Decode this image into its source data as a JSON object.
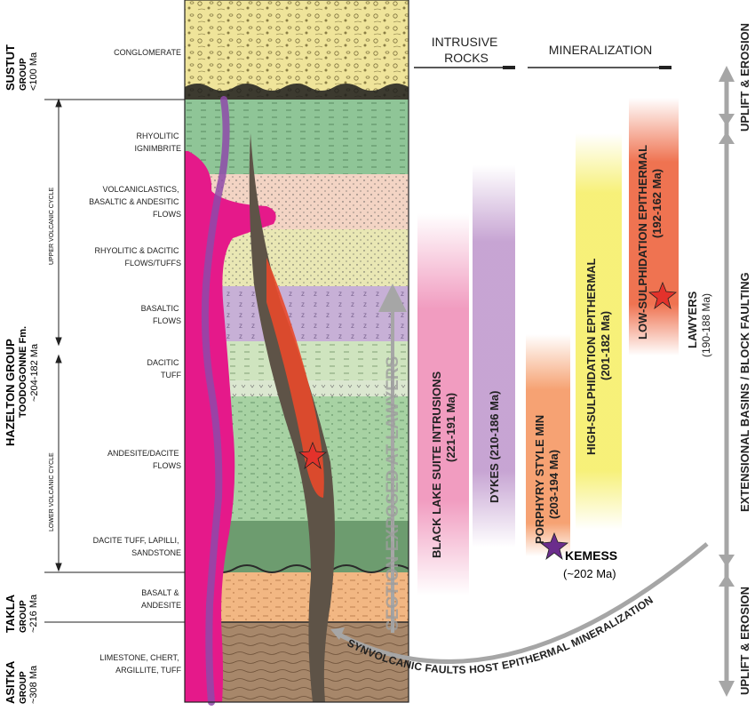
{
  "column_headers": {
    "intrusive": [
      "INTRUSIVE",
      "ROCKS"
    ],
    "mineralization": "MINERALIZATION"
  },
  "groups": [
    {
      "lines": [
        "SUSTUT",
        "GROUP",
        "<100 Ma"
      ]
    },
    {
      "lines": [
        "HAZELTON GROUP",
        "TOODOGONNE Fm.",
        "~204-182 Ma"
      ]
    },
    {
      "lines": [
        "TAKLA",
        "GROUP",
        "~216 Ma"
      ]
    },
    {
      "lines": [
        "ASITKA",
        "GROUP",
        "~308 Ma"
      ]
    }
  ],
  "cycles": {
    "upper": "UPPER VOLCANIC CYCLE",
    "lower": "LOWER VOLCANIC CYCLE"
  },
  "rock_units": [
    {
      "lines": [
        "CONGLOMERATE"
      ]
    },
    {
      "lines": [
        "RHYOLITIC",
        "IGNIMBRITE"
      ]
    },
    {
      "lines": [
        "VOLCANICLASTICS,",
        "BASALTIC & ANDESITIC",
        "FLOWS"
      ]
    },
    {
      "lines": [
        "RHYOLITIC & DACITIC",
        "FLOWS/TUFFS"
      ]
    },
    {
      "lines": [
        "BASALTIC",
        "FLOWS"
      ]
    },
    {
      "lines": [
        "DACITIC",
        "TUFF"
      ]
    },
    {
      "lines": [
        "ANDESITE/DACITE",
        "FLOWS"
      ]
    },
    {
      "lines": [
        "DACITE TUFF, LAPILLI,",
        "SANDSTONE"
      ]
    },
    {
      "lines": [
        "BASALT &",
        "ANDESITE"
      ]
    },
    {
      "lines": [
        "LIMESTONE, CHERT,",
        "ARGILLITE, TUFF"
      ]
    }
  ],
  "section_label": "SECTION EXPOSED AT LAWYERS",
  "intrusions": [
    {
      "name": "BLACK LAKE SUITE INTRUSIONS",
      "age": "(221-191 Ma)",
      "color": "#ec7bab"
    },
    {
      "name": "DYKES (210-186 Ma)",
      "color": "#b98ec8"
    }
  ],
  "mineralization": [
    {
      "name": "PORPHYRY STYLE MIN",
      "age": "(203-194 Ma)",
      "color": "#f4925a"
    },
    {
      "name": "HIGH-SULPHIDATION EPITHERMAL",
      "age": "(201-182 Ma)",
      "color": "#f6ef6a"
    },
    {
      "name": "LOW-SULPHIDATION EPITHERMAL",
      "age": "(192-162 Ma)",
      "color": "#ec5a32"
    }
  ],
  "deposits": [
    {
      "name": "KEMESS",
      "age": "(~202 Ma)",
      "marker_color": "#6b2d8c"
    },
    {
      "name": "LAWYERS",
      "age": "(190-188 Ma)",
      "marker_color": "#e3322b"
    }
  ],
  "fault_label": "SYNVOLCANIC FAULTS HOST EPITHERMAL MINERALIZATION",
  "tectonics": [
    {
      "label": "UPLIFT & EROSION"
    },
    {
      "label": "EXTENSIONAL BASINS / BLOCK FAULTING"
    },
    {
      "label": "UPLIFT & EROSION"
    }
  ]
}
